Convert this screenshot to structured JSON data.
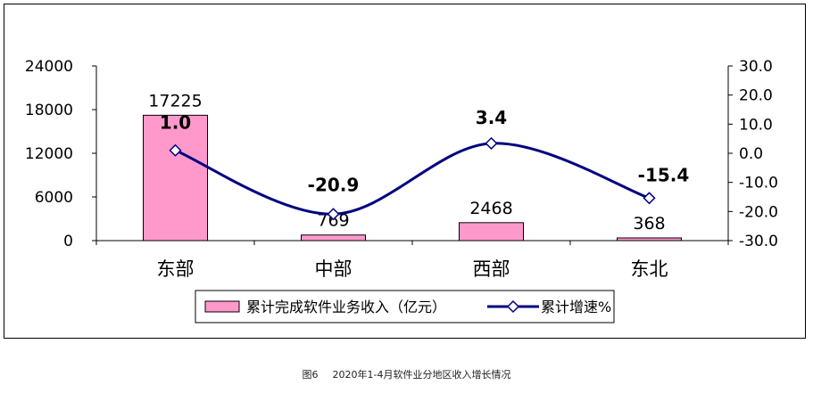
{
  "chart_data": {
    "type": "bar",
    "categories": [
      "东部",
      "中部",
      "西部",
      "东北"
    ],
    "series": [
      {
        "name": "累计完成软件业务收入（亿元）",
        "type": "bar",
        "axis": "left",
        "values": [
          17225,
          769,
          2468,
          368
        ],
        "color": "#ff99cc"
      },
      {
        "name": "累计增速%",
        "type": "line",
        "axis": "right",
        "values": [
          1.0,
          -20.9,
          3.4,
          -15.4
        ],
        "color": "#000080"
      }
    ],
    "left_axis": {
      "ylim": [
        0,
        24000
      ],
      "ticks": [
        "0",
        "6000",
        "12000",
        "18000",
        "24000"
      ]
    },
    "right_axis": {
      "ylim": [
        -30,
        30
      ],
      "ticks": [
        "-30.0",
        "-20.0",
        "-10.0",
        "0.0",
        "10.0",
        "20.0",
        "30.0"
      ]
    },
    "bar_labels": [
      "17225",
      "769",
      "2468",
      "368"
    ],
    "line_labels": [
      "1.0",
      "-20.9",
      "3.4",
      "-15.4"
    ],
    "legend_position": "bottom",
    "grid": false
  },
  "caption": {
    "figure_no": "图6",
    "text": "2020年1-4月软件业分地区收入增长情况"
  }
}
